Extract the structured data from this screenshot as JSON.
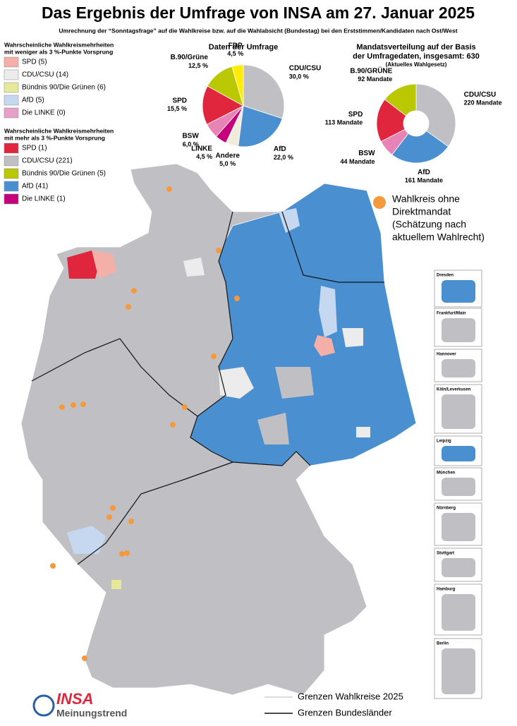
{
  "header": {
    "title": "Das Ergebnis der Umfrage von INSA am 27. Januar 2025",
    "subtitle": "Umrechnung der “Sonntagsfrage” auf die Wahlkreise bzw. auf die Wahlabsicht (Bundestag) bei den Erststimmen/Kandidaten nach Ost/West"
  },
  "legend_weak": {
    "title_lines": [
      "Wahrscheinliche Wahlkreismehrheiten",
      "mit weniger als 3 %-Punkte Vorsprung"
    ],
    "items": [
      {
        "label": "SPD (5)",
        "color": "#f4b0a8"
      },
      {
        "label": "CDU/CSU (14)",
        "color": "#ececec"
      },
      {
        "label": "Bündnis 90/Die Grünen (6)",
        "color": "#e6e89a"
      },
      {
        "label": "AfD (5)",
        "color": "#c5d8f0"
      },
      {
        "label": "Die LINKE (0)",
        "color": "#e7a0c8"
      }
    ]
  },
  "legend_strong": {
    "title_lines": [
      "Wahrscheinliche Wahlkreismehrheiten",
      "mit mehr als 3 %-Punkte Vorsprung"
    ],
    "items": [
      {
        "label": "SPD (1)",
        "color": "#e0263c"
      },
      {
        "label": "CDU/CSU (221)",
        "color": "#c0c0c4"
      },
      {
        "label": "Bündnis 90/Die Grünen (5)",
        "color": "#b9c800"
      },
      {
        "label": "AfD (41)",
        "color": "#4a90d0"
      },
      {
        "label": "Die LINKE (1)",
        "color": "#c4007a"
      }
    ]
  },
  "survey_pie": {
    "title": "Daten der Umfrage",
    "slices": [
      {
        "name": "CDU/CSU",
        "value": 30,
        "value_label": "30,0 %",
        "color": "#c0c0c4"
      },
      {
        "name": "AfD",
        "value": 22,
        "value_label": "22,0 %",
        "color": "#4a90d0"
      },
      {
        "name": "Andere",
        "value": 5,
        "value_label": "5,0 %",
        "color": "#efecdc"
      },
      {
        "name": "LINKE",
        "value": 4.5,
        "value_label": "4,5 %",
        "color": "#c4007a"
      },
      {
        "name": "BSW",
        "value": 6,
        "value_label": "6,0 %",
        "color": "#e884b5"
      },
      {
        "name": "SPD",
        "value": 15.5,
        "value_label": "15,5 %",
        "color": "#e0263c"
      },
      {
        "name": "B.90/Grüne",
        "value": 12.5,
        "value_label": "12,5 %",
        "color": "#b9c800"
      },
      {
        "name": "FDP",
        "value": 4.5,
        "value_label": "4,5 %",
        "color": "#ffec00"
      }
    ]
  },
  "seats_pie": {
    "title_lines": [
      "Mandatsverteilung auf der Basis",
      "der Umfragedaten, insgesamt: 630"
    ],
    "subtitle": "(Aktuelles Wahlgesetz)",
    "slices": [
      {
        "name": "CDU/CSU",
        "value": 220,
        "value_label": "220 Mandate",
        "color": "#c0c0c4"
      },
      {
        "name": "AfD",
        "value": 161,
        "value_label": "161 Mandate",
        "color": "#4a90d0"
      },
      {
        "name": "BSW",
        "value": 44,
        "value_label": "44 Mandate",
        "color": "#e884b5"
      },
      {
        "name": "SPD",
        "value": 113,
        "value_label": "113 Mandate",
        "color": "#e0263c"
      },
      {
        "name": "B.90/GRÜNE",
        "value": 92,
        "value_label": "92 Mandate",
        "color": "#b9c800"
      }
    ]
  },
  "map_note": {
    "lines": [
      "Wahlkreis ohne",
      "Direktmandat",
      "(Schätzung nach",
      "aktuellem Wahlrecht)"
    ]
  },
  "insets": [
    {
      "title": "Dresden"
    },
    {
      "title": "Frankfurt/Main"
    },
    {
      "title": "Hannover"
    },
    {
      "title": "Köln/Leverkusen"
    },
    {
      "title": "Leipzig"
    },
    {
      "title": "München"
    },
    {
      "title": "Nürnberg"
    },
    {
      "title": "Stuttgart"
    },
    {
      "title": "Hamburg"
    },
    {
      "title": "Berlin"
    }
  ],
  "footer": {
    "lines": [
      {
        "label": "Grenzen Wahlkreise 2025"
      },
      {
        "label": "Grenzen Bundesländer"
      }
    ],
    "logo": "INSA",
    "logo_sub": "Meinungstrend"
  }
}
